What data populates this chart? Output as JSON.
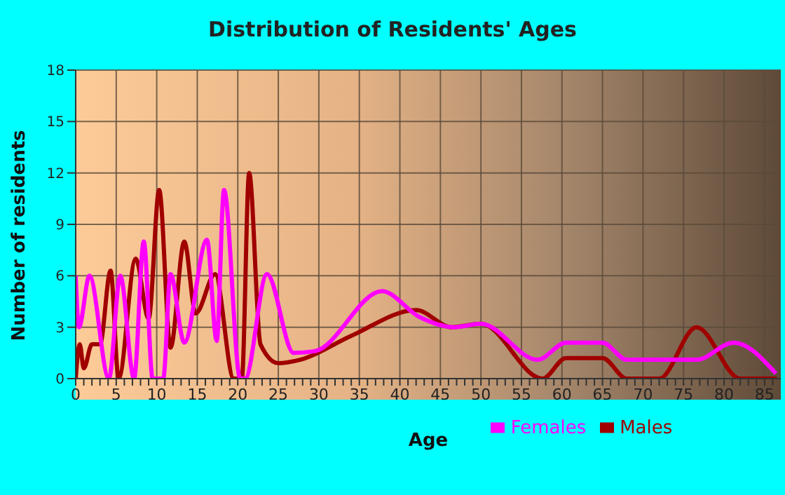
{
  "chart_data": {
    "type": "line",
    "title": "Distribution of Residents' Ages",
    "xlabel": "Age",
    "ylabel": "Number of residents",
    "series": [
      {
        "name": "Males",
        "color": "#a00000",
        "x": [
          0,
          0.5,
          1,
          2,
          3,
          4.3,
          5.3,
          7.4,
          9,
          10.3,
          11.7,
          13.4,
          14.8,
          17.2,
          19.5,
          20.5,
          21.4,
          22.8,
          25,
          27.7,
          34,
          42,
          46.4,
          50,
          57.6,
          60.5,
          65,
          68,
          72,
          76.6,
          82,
          86.5
        ],
        "values": [
          0,
          2,
          0.6,
          2,
          2,
          6.3,
          0,
          7,
          3.5,
          11,
          1.8,
          8,
          3.8,
          6.1,
          0,
          0,
          12,
          2,
          0.9,
          1.1,
          2.5,
          4,
          3,
          3.2,
          0,
          1.2,
          1.2,
          0,
          0,
          3,
          0,
          0
        ]
      },
      {
        "name": "Females",
        "color": "#ff00ff",
        "x": [
          0,
          0.4,
          1.7,
          4.1,
          5.5,
          7.2,
          8.4,
          9.5,
          10.8,
          11.7,
          13.4,
          16.2,
          17.4,
          18.3,
          20.3,
          20.9,
          23.6,
          26.9,
          29.5,
          37.8,
          42.4,
          46.7,
          50,
          57,
          60.5,
          65,
          68,
          76.6,
          81.2,
          86.4
        ],
        "values": [
          6,
          3,
          6,
          0,
          6,
          0,
          8,
          0,
          0,
          6.1,
          2.1,
          8.1,
          2.2,
          11,
          0,
          0,
          6.1,
          1.5,
          1.6,
          5.1,
          3.6,
          3,
          3.2,
          1.1,
          2.1,
          2.1,
          1.1,
          1.1,
          2.1,
          0.3
        ]
      }
    ],
    "xlim": [
      0,
      87
    ],
    "xticks": [
      0,
      {
        "value": 1,
        "label": null
      },
      {
        "value": 2,
        "label": null
      },
      {
        "value": 3,
        "label": null
      },
      {
        "value": 4,
        "label": null
      },
      5,
      {
        "value": 6,
        "label": null
      },
      {
        "value": 7,
        "label": null
      },
      {
        "value": 8,
        "label": null
      },
      {
        "value": 9,
        "label": null
      },
      10,
      {
        "value": 11,
        "label": null
      },
      {
        "value": 12,
        "label": null
      },
      {
        "value": 13,
        "label": null
      },
      {
        "value": 14,
        "label": null
      },
      15,
      {
        "value": 16,
        "label": null
      },
      {
        "value": 17,
        "label": null
      },
      {
        "value": 18,
        "label": null
      },
      {
        "value": 19,
        "label": null
      },
      20,
      {
        "value": 21,
        "label": null
      },
      {
        "value": 22,
        "label": null
      },
      {
        "value": 23,
        "label": null
      },
      {
        "value": 24,
        "label": null
      },
      25,
      {
        "value": 26,
        "label": null
      },
      {
        "value": 27,
        "label": null
      },
      {
        "value": 28,
        "label": null
      },
      {
        "value": 29,
        "label": null
      },
      30,
      {
        "value": 31,
        "label": null
      },
      {
        "value": 32,
        "label": null
      },
      {
        "value": 33,
        "label": null
      },
      {
        "value": 34,
        "label": null
      },
      35,
      {
        "value": 36,
        "label": null
      },
      {
        "value": 37,
        "label": null
      },
      {
        "value": 38,
        "label": null
      },
      {
        "value": 39,
        "label": null
      },
      40,
      {
        "value": 41,
        "label": null
      },
      {
        "value": 42,
        "label": null
      },
      {
        "value": 43,
        "label": null
      },
      {
        "value": 44,
        "label": null
      },
      45,
      {
        "value": 46,
        "label": null
      },
      {
        "value": 47,
        "label": null
      },
      {
        "value": 48,
        "label": null
      },
      {
        "value": 49,
        "label": null
      },
      50,
      {
        "value": 51,
        "label": null
      },
      {
        "value": 52,
        "label": null
      },
      {
        "value": 53,
        "label": null
      },
      {
        "value": 54,
        "label": null
      },
      55,
      {
        "value": 56,
        "label": null
      },
      {
        "value": 57,
        "label": null
      },
      {
        "value": 58,
        "label": null
      },
      {
        "value": 59,
        "label": null
      },
      60,
      {
        "value": 61,
        "label": null
      },
      {
        "value": 62,
        "label": null
      },
      {
        "value": 63,
        "label": null
      },
      {
        "value": 64,
        "label": null
      },
      65,
      {
        "value": 66,
        "label": null
      },
      {
        "value": 67,
        "label": null
      },
      {
        "value": 68,
        "label": null
      },
      {
        "value": 69,
        "label": null
      },
      70,
      {
        "value": 71,
        "label": null
      },
      {
        "value": 72,
        "label": null
      },
      {
        "value": 73,
        "label": null
      },
      {
        "value": 74,
        "label": null
      },
      75,
      {
        "value": 76,
        "label": null
      },
      {
        "value": 77,
        "label": null
      },
      {
        "value": 78,
        "label": null
      },
      {
        "value": 79,
        "label": null
      },
      80,
      {
        "value": 81,
        "label": null
      },
      {
        "value": 82,
        "label": null
      },
      {
        "value": 83,
        "label": null
      },
      {
        "value": 84,
        "label": null
      },
      85,
      {
        "value": 86,
        "label": null
      }
    ],
    "ylim": [
      0,
      18
    ],
    "yticks": [
      0,
      3,
      6,
      9,
      12,
      15,
      18
    ],
    "grid": true,
    "legend": "bottom",
    "marker": "none",
    "line_style": "solid"
  }
}
